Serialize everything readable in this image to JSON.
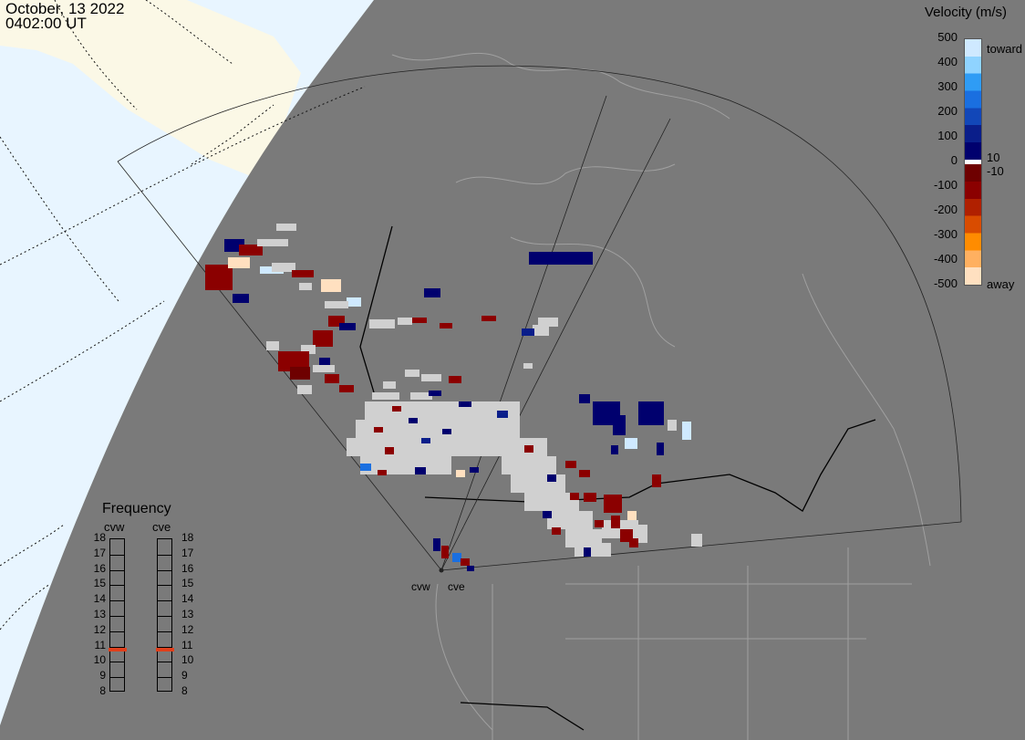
{
  "header": {
    "date": "October, 13 2022",
    "time": "0402:00 UT"
  },
  "velocity_scale": {
    "title": "Velocity (m/s)",
    "ticks": [
      "500",
      "400",
      "300",
      "200",
      "100",
      "0",
      "-100",
      "-200",
      "-300",
      "-400",
      "-500"
    ],
    "toward_label": "toward",
    "away_label": "away",
    "pos_threshold": "10",
    "neg_threshold": "-10",
    "colors_toward": [
      "#cfe9ff",
      "#8fd3ff",
      "#2f9cf5",
      "#1a6fe0",
      "#1247b8",
      "#0a1e8a",
      "#00006e"
    ],
    "colors_away": [
      "#6e0000",
      "#8b0000",
      "#b02000",
      "#d94c00",
      "#ff8c00",
      "#ffb060",
      "#ffe0c0"
    ]
  },
  "frequency_panel": {
    "title": "Frequency",
    "radars": [
      "cvw",
      "cve"
    ],
    "levels": [
      "18",
      "17",
      "16",
      "15",
      "14",
      "13",
      "12",
      "11",
      "10",
      "9",
      "8"
    ],
    "cvw_mhz": 10.8,
    "cve_mhz": 10.8,
    "marker_color": "#e0401c"
  },
  "radar_sites": {
    "west": "cvw",
    "east": "cve"
  },
  "map": {
    "night_color": "#7a7a7a",
    "day_ocean_color": "#e8f5ff",
    "day_land_color": "#fbf8e6",
    "echo_ground_scatter_color": "#d0d0d0"
  }
}
